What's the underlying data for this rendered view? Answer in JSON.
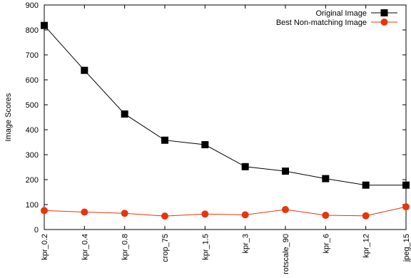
{
  "chart_data": {
    "type": "line",
    "title": "",
    "xlabel": "",
    "ylabel": "Image Scores",
    "ylim": [
      0,
      900
    ],
    "yticks": [
      0,
      100,
      200,
      300,
      400,
      500,
      600,
      700,
      800,
      900
    ],
    "grid": false,
    "legend_position": "top-right",
    "categories": [
      "kpr_0.2",
      "kpr_0.4",
      "kpr_0.8",
      "crop_75",
      "kpr_1.5",
      "kpr_3",
      "rotscale_90",
      "kpr_6",
      "kpr_12",
      "jpeg_15"
    ],
    "series": [
      {
        "name": "Original Image",
        "color": "#000000",
        "marker": "square",
        "values": [
          818,
          638,
          463,
          358,
          340,
          252,
          234,
          204,
          178,
          178
        ]
      },
      {
        "name": "Best Non-matching Image",
        "color": "#e8340c",
        "marker": "circle",
        "values": [
          76,
          70,
          65,
          54,
          62,
          59,
          80,
          57,
          55,
          91
        ]
      }
    ]
  }
}
